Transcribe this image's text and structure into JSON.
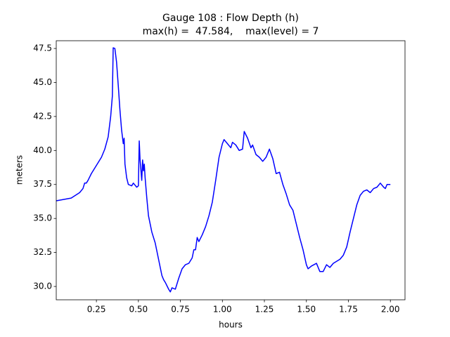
{
  "chart_data": {
    "type": "line",
    "title": "Gauge 108 : Flow Depth (h)",
    "subtitle": "max(h) =  47.584,    max(level) = 7",
    "xlabel": "hours",
    "ylabel": "meters",
    "xlim": [
      0.011,
      2.087
    ],
    "ylim": [
      29.02,
      48.07
    ],
    "xticks": [
      0.25,
      {
        "value": 0.5,
        "label": "0.50"
      },
      0.75,
      {
        "value": 1,
        "label": "1.00"
      },
      1.25,
      {
        "value": 1.5,
        "label": "1.50"
      },
      1.75,
      {
        "value": 2,
        "label": "2.00"
      }
    ],
    "yticks": [
      {
        "value": 30,
        "label": "30.0"
      },
      32.5,
      {
        "value": 35,
        "label": "35.0"
      },
      37.5,
      {
        "value": 40,
        "label": "40.0"
      },
      42.5,
      {
        "value": 45,
        "label": "45.0"
      },
      47.5
    ],
    "grid": false,
    "series": [
      {
        "name": "h",
        "color": "#0000ff",
        "x": [
          0.011,
          0.1,
          0.15,
          0.17,
          0.18,
          0.19,
          0.2,
          0.22,
          0.25,
          0.28,
          0.3,
          0.32,
          0.335,
          0.345,
          0.35,
          0.36,
          0.37,
          0.38,
          0.39,
          0.4,
          0.41,
          0.415,
          0.42,
          0.43,
          0.44,
          0.46,
          0.47,
          0.49,
          0.5,
          0.505,
          0.51,
          0.52,
          0.525,
          0.53,
          0.535,
          0.54,
          0.55,
          0.56,
          0.58,
          0.6,
          0.62,
          0.64,
          0.65,
          0.66,
          0.68,
          0.69,
          0.7,
          0.72,
          0.74,
          0.76,
          0.78,
          0.8,
          0.82,
          0.83,
          0.84,
          0.85,
          0.86,
          0.88,
          0.9,
          0.92,
          0.94,
          0.96,
          0.98,
          1.0,
          1.01,
          1.03,
          1.05,
          1.06,
          1.08,
          1.1,
          1.12,
          1.13,
          1.15,
          1.17,
          1.18,
          1.2,
          1.22,
          1.24,
          1.26,
          1.28,
          1.3,
          1.32,
          1.34,
          1.36,
          1.38,
          1.4,
          1.42,
          1.44,
          1.46,
          1.48,
          1.5,
          1.51,
          1.53,
          1.56,
          1.58,
          1.6,
          1.62,
          1.64,
          1.66,
          1.7,
          1.72,
          1.74,
          1.76,
          1.78,
          1.8,
          1.82,
          1.84,
          1.86,
          1.88,
          1.9,
          1.92,
          1.94,
          1.96,
          1.97,
          1.98,
          2.0
        ],
        "values": [
          36.3,
          36.5,
          36.9,
          37.2,
          37.6,
          37.6,
          37.8,
          38.3,
          38.9,
          39.5,
          40.1,
          41.0,
          42.5,
          44.0,
          47.55,
          47.5,
          46.5,
          44.8,
          43.0,
          41.5,
          40.5,
          40.9,
          39.0,
          38.0,
          37.5,
          37.4,
          37.6,
          37.3,
          37.4,
          40.7,
          39.3,
          37.8,
          39.3,
          38.5,
          39.0,
          38.0,
          36.5,
          35.2,
          34.0,
          33.2,
          32.0,
          30.8,
          30.5,
          30.3,
          29.8,
          29.6,
          29.9,
          29.8,
          30.6,
          31.3,
          31.6,
          31.7,
          32.1,
          32.7,
          32.7,
          33.6,
          33.3,
          33.8,
          34.4,
          35.2,
          36.2,
          37.8,
          39.5,
          40.5,
          40.8,
          40.5,
          40.2,
          40.6,
          40.4,
          40.0,
          40.1,
          41.4,
          40.9,
          40.2,
          40.4,
          39.7,
          39.5,
          39.2,
          39.5,
          40.1,
          39.4,
          38.3,
          38.4,
          37.5,
          36.8,
          36.0,
          35.6,
          34.6,
          33.6,
          32.7,
          31.6,
          31.3,
          31.5,
          31.7,
          31.1,
          31.1,
          31.6,
          31.4,
          31.7,
          32.0,
          32.3,
          32.9,
          34.0,
          35.0,
          36.0,
          36.7,
          37.0,
          37.1,
          36.9,
          37.2,
          37.3,
          37.6,
          37.3,
          37.2,
          37.5,
          37.5
        ]
      }
    ]
  }
}
